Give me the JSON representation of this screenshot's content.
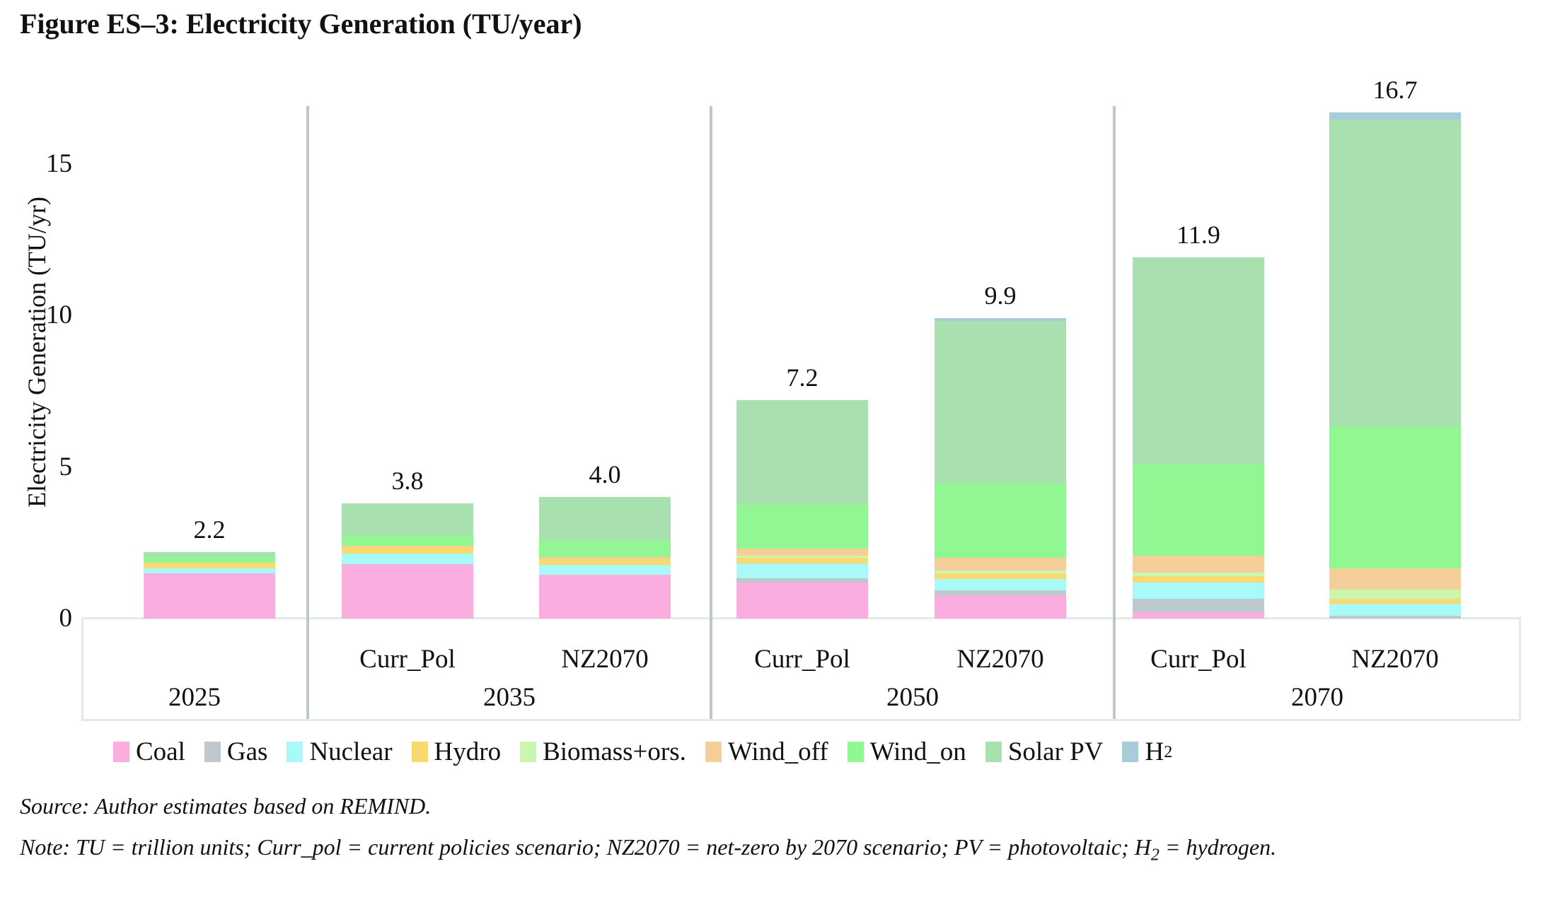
{
  "title": "Figure ES–3: Electricity Generation (TU/year)",
  "chart_data": {
    "type": "bar",
    "stacked": true,
    "title": "Figure ES–3: Electricity Generation (TU/year)",
    "ylabel": "Electricity Generation (TU/yr)",
    "ylim": [
      0,
      17.2
    ],
    "yticks": [
      0,
      5,
      10,
      15
    ],
    "grid": false,
    "legend_position": "bottom",
    "series": [
      "Coal",
      "Gas",
      "Nuclear",
      "Hydro",
      "Biomass+ors.",
      "Wind_off",
      "Wind_on",
      "Solar PV",
      "H2"
    ],
    "colors": {
      "Coal": "#f9aedf",
      "Gas": "#bec9cd",
      "Nuclear": "#a9f9f9",
      "Hydro": "#f9da70",
      "Biomass+ors.": "#c9f7b0",
      "Wind_off": "#f5ce99",
      "Wind_on": "#90f793",
      "Solar PV": "#a8e0b0",
      "H2": "#a8ccd9"
    },
    "groups": [
      {
        "year": "2025",
        "bars": [
          {
            "scenario": "",
            "total_label": "2.2",
            "total": 2.2,
            "values": [
              1.5,
              0,
              0.15,
              0.2,
              0,
              0,
              0.2,
              0.15,
              0
            ]
          }
        ]
      },
      {
        "year": "2035",
        "bars": [
          {
            "scenario": "Curr_Pol",
            "total_label": "3.8",
            "total": 3.8,
            "values": [
              1.8,
              0,
              0.35,
              0.2,
              0,
              0.05,
              0.35,
              1.05,
              0
            ]
          },
          {
            "scenario": "NZ2070",
            "total_label": "4.0",
            "total": 4.0,
            "values": [
              1.45,
              0,
              0.33,
              0.17,
              0,
              0.07,
              0.55,
              1.43,
              0
            ]
          }
        ]
      },
      {
        "year": "2050",
        "bars": [
          {
            "scenario": "Curr_Pol",
            "total_label": "7.2",
            "total": 7.2,
            "values": [
              1.2,
              0.12,
              0.5,
              0.19,
              0.06,
              0.23,
              1.45,
              3.45,
              0
            ]
          },
          {
            "scenario": "NZ2070",
            "total_label": "9.9",
            "total": 9.9,
            "values": [
              0.77,
              0.16,
              0.37,
              0.19,
              0.09,
              0.42,
              2.45,
              5.36,
              0.09
            ]
          }
        ]
      },
      {
        "year": "2070",
        "bars": [
          {
            "scenario": "Curr_Pol",
            "total_label": "11.9",
            "total": 11.9,
            "values": [
              0.2,
              0.45,
              0.55,
              0.2,
              0.12,
              0.55,
              3.0,
              6.83,
              0
            ]
          },
          {
            "scenario": "NZ2070",
            "total_label": "16.7",
            "total": 16.7,
            "values": [
              0,
              0.1,
              0.4,
              0.15,
              0.3,
              0.7,
              4.7,
              10.1,
              0.25
            ]
          }
        ]
      }
    ],
    "legend": [
      {
        "label": "Coal",
        "color": "#f9aedf"
      },
      {
        "label": "Gas",
        "color": "#bec9cd"
      },
      {
        "label": "Nuclear",
        "color": "#a9f9f9"
      },
      {
        "label": "Hydro",
        "color": "#f9da70"
      },
      {
        "label": "Biomass+ors.",
        "color": "#c9f7b0"
      },
      {
        "label": "Wind_off",
        "color": "#f5ce99"
      },
      {
        "label": "Wind_on",
        "color": "#90f793"
      },
      {
        "label": "Solar PV",
        "color": "#a8e0b0"
      },
      {
        "label": "H",
        "sub": "2",
        "color": "#a8ccd9"
      }
    ]
  },
  "footnotes": {
    "source": "Source: Author estimates based on REMIND.",
    "note_parts": [
      {
        "text": "Note: TU = trillion units; Curr_pol = current policies scenario; NZ2070 = net-zero by 2070 scenario; PV = photovoltaic; H"
      },
      {
        "sub": "2"
      },
      {
        "text": " = hydrogen."
      }
    ]
  }
}
